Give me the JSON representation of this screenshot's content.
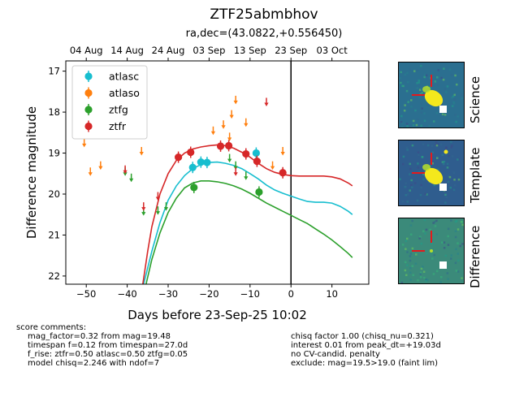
{
  "header": {
    "title": "ZTF25abmbhov",
    "coords": "ra,dec=(43.0822,+0.556450)"
  },
  "chart_data": {
    "type": "scatter",
    "xlabel": "Days before 23-Sep-25 10:02",
    "ylabel": "Difference magnitude",
    "xlim": [
      -55,
      19
    ],
    "ylim": [
      22.2,
      16.75
    ],
    "y_inverted": true,
    "x_ticks": [
      -50,
      -40,
      -30,
      -20,
      -10,
      0,
      10
    ],
    "y_ticks": [
      17,
      18,
      19,
      20,
      21,
      22
    ],
    "top_axis_ticks": [
      {
        "x": -50.0,
        "label": "04 Aug"
      },
      {
        "x": -40.0,
        "label": "14 Aug"
      },
      {
        "x": -30.0,
        "label": "24 Aug"
      },
      {
        "x": -20.0,
        "label": "03 Sep"
      },
      {
        "x": -10.0,
        "label": "13 Sep"
      },
      {
        "x": 0.0,
        "label": "23 Sep"
      },
      {
        "x": 10.0,
        "label": "03 Oct"
      }
    ],
    "vline_x": 0,
    "legend_position": "upper-left",
    "grid": false,
    "series": [
      {
        "name": "atlasc",
        "color": "#17becf",
        "points": [
          [
            -24,
            19.35
          ],
          [
            -22,
            19.22
          ],
          [
            -20.5,
            19.23
          ],
          [
            -8.5,
            19.0
          ]
        ],
        "upper_limits": [],
        "curve": [
          [
            -36,
            22.2
          ],
          [
            -34,
            21.4
          ],
          [
            -32,
            20.7
          ],
          [
            -30,
            20.15
          ],
          [
            -28,
            19.8
          ],
          [
            -26,
            19.55
          ],
          [
            -24,
            19.38
          ],
          [
            -22,
            19.28
          ],
          [
            -20,
            19.23
          ],
          [
            -18,
            19.22
          ],
          [
            -16,
            19.25
          ],
          [
            -14,
            19.3
          ],
          [
            -12,
            19.38
          ],
          [
            -10,
            19.5
          ],
          [
            -8,
            19.63
          ],
          [
            -6,
            19.78
          ],
          [
            -4,
            19.9
          ],
          [
            -2,
            19.98
          ],
          [
            0,
            20.05
          ],
          [
            2,
            20.12
          ],
          [
            4,
            20.18
          ],
          [
            6,
            20.2
          ],
          [
            8,
            20.2
          ],
          [
            10,
            20.22
          ],
          [
            12,
            20.3
          ],
          [
            14,
            20.42
          ],
          [
            15,
            20.5
          ]
        ]
      },
      {
        "name": "atlaso",
        "color": "#ff7f0e",
        "points": [],
        "upper_limits": [
          [
            -50.5,
            18.75
          ],
          [
            -49,
            19.45
          ],
          [
            -46.5,
            19.3
          ],
          [
            -36.5,
            18.95
          ],
          [
            -19,
            18.45
          ],
          [
            -16.5,
            18.3
          ],
          [
            -15,
            18.6
          ],
          [
            -14.5,
            18.05
          ],
          [
            -13.5,
            17.7
          ],
          [
            -11,
            18.25
          ],
          [
            -4.5,
            19.3
          ],
          [
            -2,
            18.95
          ]
        ],
        "curve": []
      },
      {
        "name": "ztfg",
        "color": "#2ca02c",
        "points": [
          [
            -23.7,
            19.84
          ],
          [
            -7.8,
            19.95
          ]
        ],
        "upper_limits": [
          [
            -40.5,
            19.45
          ],
          [
            -39,
            19.6
          ],
          [
            -36,
            20.42
          ],
          [
            -32.5,
            20.4
          ],
          [
            -30.5,
            20.3
          ],
          [
            -15,
            19.12
          ],
          [
            -13.5,
            19.3
          ],
          [
            -11,
            19.55
          ]
        ],
        "curve": [
          [
            -35.4,
            22.2
          ],
          [
            -34,
            21.6
          ],
          [
            -32,
            20.95
          ],
          [
            -30,
            20.45
          ],
          [
            -28,
            20.1
          ],
          [
            -26,
            19.85
          ],
          [
            -24,
            19.73
          ],
          [
            -22,
            19.68
          ],
          [
            -20,
            19.68
          ],
          [
            -18,
            19.7
          ],
          [
            -16,
            19.74
          ],
          [
            -14,
            19.8
          ],
          [
            -12,
            19.88
          ],
          [
            -10,
            19.98
          ],
          [
            -8,
            20.1
          ],
          [
            -6,
            20.22
          ],
          [
            -4,
            20.32
          ],
          [
            -2,
            20.42
          ],
          [
            0,
            20.52
          ],
          [
            2,
            20.62
          ],
          [
            4,
            20.72
          ],
          [
            6,
            20.85
          ],
          [
            8,
            20.98
          ],
          [
            10,
            21.12
          ],
          [
            12,
            21.28
          ],
          [
            14,
            21.45
          ],
          [
            15,
            21.55
          ]
        ]
      },
      {
        "name": "ztfr",
        "color": "#d62728",
        "points": [
          [
            -27.5,
            19.1
          ],
          [
            -24.5,
            18.98
          ],
          [
            -17.2,
            18.83
          ],
          [
            -15.2,
            18.82
          ],
          [
            -11,
            19.02
          ],
          [
            -8.3,
            19.2
          ],
          [
            -2,
            19.48
          ]
        ],
        "upper_limits": [
          [
            -40.5,
            19.4
          ],
          [
            -36,
            20.3
          ],
          [
            -32.5,
            20.05
          ],
          [
            -13.5,
            19.45
          ],
          [
            -6,
            17.75
          ]
        ],
        "curve": [
          [
            -36.2,
            22.2
          ],
          [
            -35,
            21.4
          ],
          [
            -34,
            20.8
          ],
          [
            -32,
            20.0
          ],
          [
            -30,
            19.5
          ],
          [
            -28,
            19.18
          ],
          [
            -26,
            19.0
          ],
          [
            -24,
            18.9
          ],
          [
            -22,
            18.85
          ],
          [
            -20,
            18.82
          ],
          [
            -18,
            18.8
          ],
          [
            -16,
            18.82
          ],
          [
            -14,
            18.88
          ],
          [
            -12,
            18.98
          ],
          [
            -10,
            19.1
          ],
          [
            -8,
            19.25
          ],
          [
            -6,
            19.38
          ],
          [
            -4,
            19.47
          ],
          [
            -2,
            19.52
          ],
          [
            0,
            19.55
          ],
          [
            2,
            19.56
          ],
          [
            4,
            19.56
          ],
          [
            6,
            19.56
          ],
          [
            8,
            19.56
          ],
          [
            10,
            19.58
          ],
          [
            12,
            19.63
          ],
          [
            14,
            19.73
          ],
          [
            15,
            19.8
          ]
        ]
      }
    ]
  },
  "stamps": [
    {
      "label": "Science",
      "bg": "#2b6f90",
      "source": "#f4e81c"
    },
    {
      "label": "Template",
      "bg": "#2f5d8e",
      "source": "#f4e81c"
    },
    {
      "label": "Difference",
      "bg": "#3b8a7a",
      "source": "#b5de2b"
    }
  ],
  "marker_color": "#e41a1c",
  "comments": {
    "heading": "score comments:",
    "left": [
      "mag_factor=0.32 from mag=19.48",
      "timespan f=0.12 from timespan=27.0d",
      "f_rise: ztfr=0.50 atlasc=0.50 ztfg=0.05",
      "model chisq=2.246 with ndof=7"
    ],
    "right": [
      "chisq factor 1.00 (chisq_nu=0.321)",
      "interest 0.01 from peak_dt=+19.03d",
      "no CV-candid. penalty",
      "exclude: mag=19.5>19.0 (faint lim)"
    ]
  }
}
